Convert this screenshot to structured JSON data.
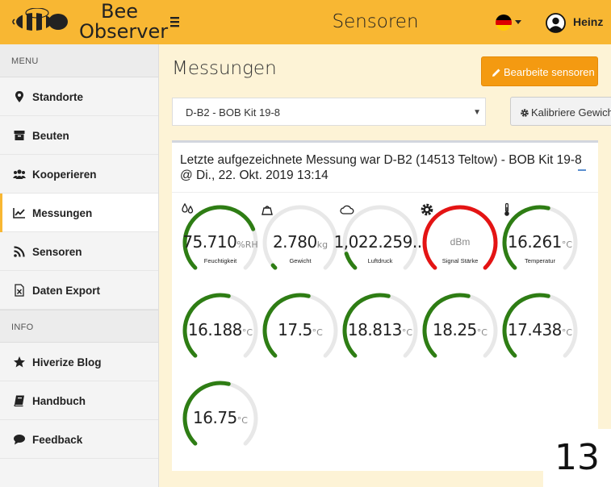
{
  "header": {
    "logo_line1": "Bee",
    "logo_line2": "Observer",
    "title": "Sensoren",
    "user": "Heinz"
  },
  "sidebar": {
    "menu_header": "MENU",
    "items": [
      {
        "label": "Standorte",
        "icon": "map-marker-icon"
      },
      {
        "label": "Beuten",
        "icon": "hive-box-icon"
      },
      {
        "label": "Kooperieren",
        "icon": "users-icon"
      },
      {
        "label": "Messungen",
        "icon": "line-chart-icon",
        "active": true
      },
      {
        "label": "Sensoren",
        "icon": "rss-icon"
      },
      {
        "label": "Daten Export",
        "icon": "excel-file-icon"
      }
    ],
    "info_header": "INFO",
    "info_items": [
      {
        "label": "Hiverize Blog",
        "icon": "star-icon"
      },
      {
        "label": "Handbuch",
        "icon": "book-icon"
      },
      {
        "label": "Feedback",
        "icon": "comment-icon"
      }
    ]
  },
  "main": {
    "title": "Messungen",
    "edit_button": "Bearbeite sensoren",
    "calibrate_button": "Kalibriere Gewicht",
    "selected_sensor": "D-B2 - BOB Kit 19-8",
    "panel_title_line1": "Letzte aufgezeichnete Messung war D-B2 (14513 Teltow) - BOB Kit 19-8",
    "panel_title_line2": "@ Di., 22. Okt. 2019 13:14"
  },
  "gauges": [
    {
      "value": "75.710",
      "unit": "%RH",
      "label": "Feuchtigkeit",
      "icon": "drops-icon",
      "fraction": 0.75,
      "color": "#2e7d14"
    },
    {
      "value": "2.780",
      "unit": "kg",
      "label": "Gewicht",
      "icon": "weight-icon",
      "fraction": 0.02,
      "color": "#2e7d14"
    },
    {
      "value": "1,022.259...",
      "unit": "",
      "label": "Luftdruck",
      "icon": "cloud-icon",
      "fraction": 0.1,
      "color": "#2e7d14"
    },
    {
      "value": "",
      "unit": "dBm",
      "label": "Signal Stärke",
      "icon": "gear-icon",
      "fraction": 1.0,
      "color": "#e41414"
    },
    {
      "value": "16.261",
      "unit": "°C",
      "label": "Temperatur",
      "icon": "thermometer-icon",
      "fraction": 0.55,
      "color": "#2e7d14"
    },
    {
      "value": "16.188",
      "unit": "°C",
      "label": "",
      "icon": "",
      "fraction": 0.55,
      "color": "#2e7d14"
    },
    {
      "value": "17.5",
      "unit": "°C",
      "label": "",
      "icon": "",
      "fraction": 0.55,
      "color": "#2e7d14"
    },
    {
      "value": "18.813",
      "unit": "°C",
      "label": "",
      "icon": "",
      "fraction": 0.55,
      "color": "#2e7d14"
    },
    {
      "value": "18.25",
      "unit": "°C",
      "label": "",
      "icon": "",
      "fraction": 0.55,
      "color": "#2e7d14"
    },
    {
      "value": "17.438",
      "unit": "°C",
      "label": "",
      "icon": "",
      "fraction": 0.55,
      "color": "#2e7d14"
    },
    {
      "value": "16.75",
      "unit": "°C",
      "label": "",
      "icon": "",
      "fraction": 0.55,
      "color": "#2e7d14"
    }
  ],
  "page_number": "13"
}
